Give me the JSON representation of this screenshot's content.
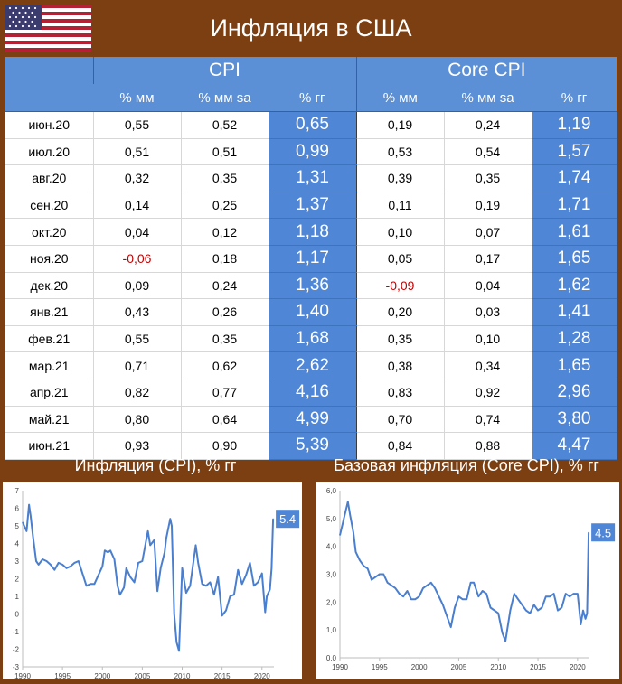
{
  "header": {
    "title": "Инфляция в США",
    "flag_icon": "us-flag-icon"
  },
  "table": {
    "groups": [
      "CPI",
      "Core CPI"
    ],
    "subheaders": [
      "% мм",
      "% мм sa",
      "% гг",
      "% мм",
      "% мм sa",
      "% гг"
    ],
    "rows": [
      {
        "month": "июн.20",
        "cpi_mm": "0,55",
        "cpi_mm_sa": "0,52",
        "cpi_yy": "0,65",
        "core_mm": "0,19",
        "core_mm_sa": "0,24",
        "core_yy": "1,19"
      },
      {
        "month": "июл.20",
        "cpi_mm": "0,51",
        "cpi_mm_sa": "0,51",
        "cpi_yy": "0,99",
        "core_mm": "0,53",
        "core_mm_sa": "0,54",
        "core_yy": "1,57"
      },
      {
        "month": "авг.20",
        "cpi_mm": "0,32",
        "cpi_mm_sa": "0,35",
        "cpi_yy": "1,31",
        "core_mm": "0,39",
        "core_mm_sa": "0,35",
        "core_yy": "1,74"
      },
      {
        "month": "сен.20",
        "cpi_mm": "0,14",
        "cpi_mm_sa": "0,25",
        "cpi_yy": "1,37",
        "core_mm": "0,11",
        "core_mm_sa": "0,19",
        "core_yy": "1,71"
      },
      {
        "month": "окт.20",
        "cpi_mm": "0,04",
        "cpi_mm_sa": "0,12",
        "cpi_yy": "1,18",
        "core_mm": "0,10",
        "core_mm_sa": "0,07",
        "core_yy": "1,61"
      },
      {
        "month": "ноя.20",
        "cpi_mm": "-0,06",
        "cpi_mm_sa": "0,18",
        "cpi_yy": "1,17",
        "core_mm": "0,05",
        "core_mm_sa": "0,17",
        "core_yy": "1,65"
      },
      {
        "month": "дек.20",
        "cpi_mm": "0,09",
        "cpi_mm_sa": "0,24",
        "cpi_yy": "1,36",
        "core_mm": "-0,09",
        "core_mm_sa": "0,04",
        "core_yy": "1,62"
      },
      {
        "month": "янв.21",
        "cpi_mm": "0,43",
        "cpi_mm_sa": "0,26",
        "cpi_yy": "1,40",
        "core_mm": "0,20",
        "core_mm_sa": "0,03",
        "core_yy": "1,41"
      },
      {
        "month": "фев.21",
        "cpi_mm": "0,55",
        "cpi_mm_sa": "0,35",
        "cpi_yy": "1,68",
        "core_mm": "0,35",
        "core_mm_sa": "0,10",
        "core_yy": "1,28"
      },
      {
        "month": "мар.21",
        "cpi_mm": "0,71",
        "cpi_mm_sa": "0,62",
        "cpi_yy": "2,62",
        "core_mm": "0,38",
        "core_mm_sa": "0,34",
        "core_yy": "1,65"
      },
      {
        "month": "апр.21",
        "cpi_mm": "0,82",
        "cpi_mm_sa": "0,77",
        "cpi_yy": "4,16",
        "core_mm": "0,83",
        "core_mm_sa": "0,92",
        "core_yy": "2,96"
      },
      {
        "month": "май.21",
        "cpi_mm": "0,80",
        "cpi_mm_sa": "0,64",
        "cpi_yy": "4,99",
        "core_mm": "0,70",
        "core_mm_sa": "0,74",
        "core_yy": "3,80"
      },
      {
        "month": "июн.21",
        "cpi_mm": "0,93",
        "cpi_mm_sa": "0,90",
        "cpi_yy": "5,39",
        "core_mm": "0,84",
        "core_mm_sa": "0,88",
        "core_yy": "4,47"
      }
    ]
  },
  "colors": {
    "background": "#7b3f12",
    "table_header": "#5b8fd6",
    "yy_cell": "#4f86d6",
    "negative": "#c00000",
    "line": "#4a7fcf",
    "zero_line": "#f4a0a0"
  },
  "chart_data": [
    {
      "type": "line",
      "title": "Инфляция (CPI), % гг",
      "xlabel": "",
      "ylabel": "",
      "xlim": [
        1990,
        2021.5
      ],
      "ylim": [
        -3,
        7
      ],
      "yticks": [
        "-3",
        "-2",
        "-1",
        "0",
        "1",
        "2",
        "3",
        "4",
        "5",
        "6",
        "7"
      ],
      "xticks": [
        "1990",
        "1995",
        "2000",
        "2005",
        "2010",
        "2015",
        "2020"
      ],
      "end_label": "5.4",
      "zero_line": true,
      "x": [
        1990.0,
        1990.5,
        1990.8,
        1991.0,
        1991.3,
        1991.7,
        1992.0,
        1992.5,
        1993.0,
        1993.5,
        1994.0,
        1994.5,
        1995.0,
        1995.5,
        1996.0,
        1996.5,
        1997.0,
        1997.5,
        1998.0,
        1998.5,
        1999.0,
        1999.5,
        2000.0,
        2000.3,
        2000.7,
        2001.0,
        2001.5,
        2001.9,
        2002.2,
        2002.7,
        2003.0,
        2003.5,
        2004.0,
        2004.5,
        2005.0,
        2005.7,
        2006.0,
        2006.5,
        2006.9,
        2007.3,
        2007.8,
        2008.0,
        2008.5,
        2008.7,
        2009.0,
        2009.3,
        2009.6,
        2010.0,
        2010.5,
        2011.0,
        2011.7,
        2012.0,
        2012.5,
        2013.0,
        2013.5,
        2014.0,
        2014.5,
        2015.0,
        2015.5,
        2016.0,
        2016.5,
        2017.0,
        2017.5,
        2018.0,
        2018.5,
        2019.0,
        2019.5,
        2020.0,
        2020.4,
        2020.6,
        2021.0,
        2021.2,
        2021.4
      ],
      "values": [
        5.2,
        4.7,
        6.2,
        5.6,
        4.4,
        3.0,
        2.8,
        3.1,
        3.0,
        2.8,
        2.5,
        2.9,
        2.8,
        2.6,
        2.7,
        2.9,
        3.0,
        2.3,
        1.6,
        1.7,
        1.7,
        2.2,
        2.7,
        3.6,
        3.5,
        3.6,
        3.1,
        1.6,
        1.1,
        1.5,
        2.6,
        2.1,
        1.8,
        2.9,
        3.0,
        4.7,
        3.9,
        4.2,
        1.3,
        2.6,
        3.5,
        4.3,
        5.4,
        5.0,
        0.0,
        -1.6,
        -2.1,
        2.6,
        1.2,
        1.6,
        3.9,
        2.9,
        1.7,
        1.6,
        1.8,
        1.1,
        2.1,
        -0.1,
        0.2,
        1.0,
        1.1,
        2.5,
        1.7,
        2.2,
        2.9,
        1.6,
        1.8,
        2.3,
        0.1,
        1.0,
        1.4,
        2.6,
        5.4
      ]
    },
    {
      "type": "line",
      "title": "Базовая инфляция (Core CPI), % гг",
      "xlabel": "",
      "ylabel": "",
      "xlim": [
        1990,
        2021.5
      ],
      "ylim": [
        0,
        6
      ],
      "yticks": [
        "0,0",
        "1,0",
        "2,0",
        "3,0",
        "4,0",
        "5,0",
        "6,0"
      ],
      "xticks": [
        "1990",
        "1995",
        "2000",
        "2005",
        "2010",
        "2015",
        "2020"
      ],
      "end_label": "4.5",
      "zero_line": false,
      "x": [
        1990.0,
        1990.5,
        1991.0,
        1991.3,
        1991.7,
        1992.0,
        1992.5,
        1993.0,
        1993.5,
        1994.0,
        1994.5,
        1995.0,
        1995.5,
        1996.0,
        1996.5,
        1997.0,
        1997.5,
        1998.0,
        1998.5,
        1999.0,
        1999.5,
        2000.0,
        2000.5,
        2001.0,
        2001.5,
        2002.0,
        2002.5,
        2003.0,
        2003.5,
        2004.0,
        2004.5,
        2005.0,
        2005.5,
        2006.0,
        2006.5,
        2006.9,
        2007.5,
        2008.0,
        2008.5,
        2009.0,
        2009.5,
        2010.0,
        2010.5,
        2010.9,
        2011.5,
        2012.0,
        2012.5,
        2013.0,
        2013.5,
        2014.0,
        2014.5,
        2015.0,
        2015.5,
        2016.0,
        2016.5,
        2017.0,
        2017.5,
        2018.0,
        2018.5,
        2019.0,
        2019.5,
        2020.0,
        2020.4,
        2020.7,
        2021.0,
        2021.2,
        2021.4
      ],
      "values": [
        4.4,
        5.0,
        5.6,
        5.1,
        4.5,
        3.8,
        3.5,
        3.3,
        3.2,
        2.8,
        2.9,
        3.0,
        3.0,
        2.7,
        2.6,
        2.5,
        2.3,
        2.2,
        2.4,
        2.1,
        2.1,
        2.2,
        2.5,
        2.6,
        2.7,
        2.5,
        2.2,
        1.9,
        1.5,
        1.1,
        1.8,
        2.2,
        2.1,
        2.1,
        2.7,
        2.7,
        2.2,
        2.4,
        2.3,
        1.8,
        1.7,
        1.6,
        0.9,
        0.6,
        1.7,
        2.3,
        2.1,
        1.9,
        1.7,
        1.6,
        1.9,
        1.7,
        1.8,
        2.2,
        2.2,
        2.3,
        1.7,
        1.8,
        2.3,
        2.2,
        2.3,
        2.3,
        1.2,
        1.7,
        1.4,
        1.6,
        4.5
      ]
    }
  ]
}
